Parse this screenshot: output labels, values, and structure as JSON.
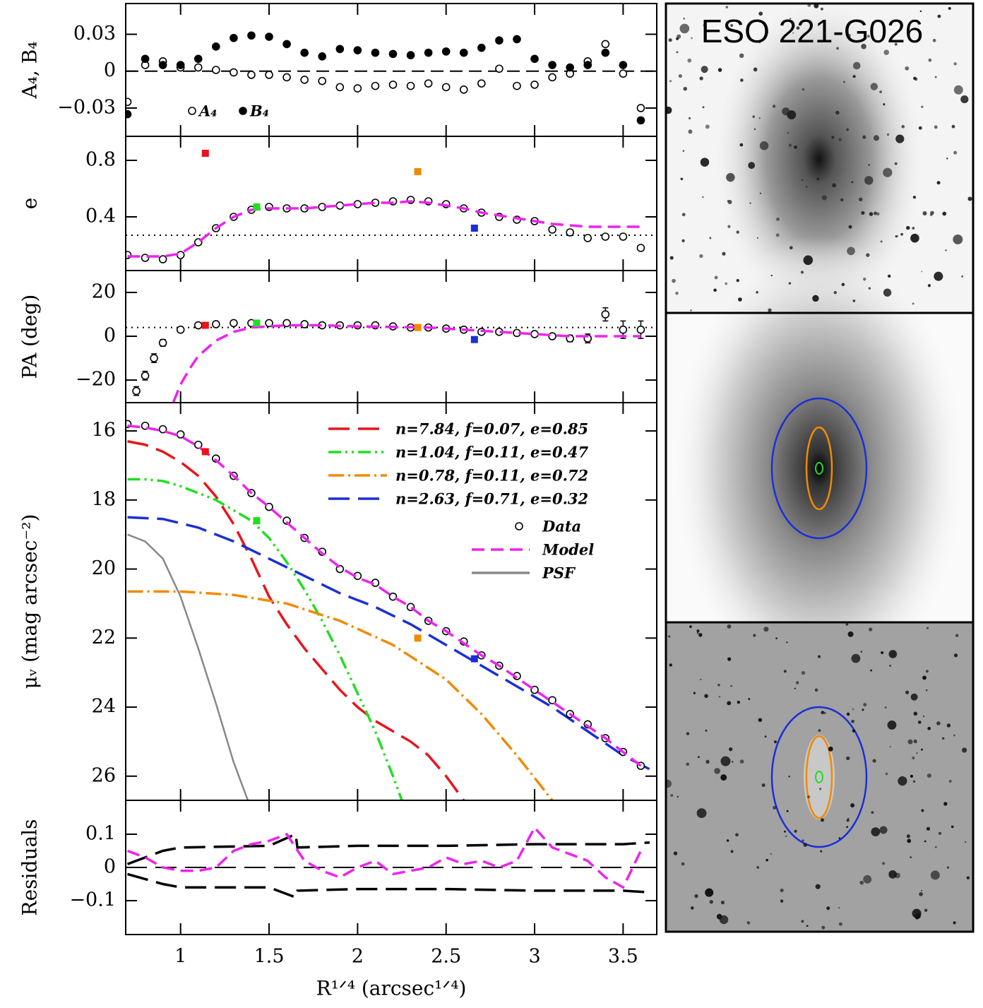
{
  "image_title": "ESO 221-G026",
  "chart_data": [
    {
      "type": "scatter",
      "ylabel": "A₄, B₄",
      "ylim": [
        -0.053,
        0.055
      ],
      "yticks": [
        0.03,
        0,
        {
          "value": -0.03,
          "label": "−0.03"
        }
      ],
      "ref_lines": [
        {
          "y": 0,
          "style": "dashed"
        }
      ],
      "legend": "lower-left",
      "series": [
        {
          "name": "A₄",
          "color": "#000000",
          "style": "points-open",
          "x": [
            0.7,
            0.8,
            0.9,
            1.0,
            1.1,
            1.2,
            1.3,
            1.4,
            1.5,
            1.6,
            1.7,
            1.8,
            1.9,
            2.0,
            2.1,
            2.2,
            2.3,
            2.4,
            2.5,
            2.6,
            2.7,
            2.8,
            2.9,
            3.0,
            3.1,
            3.2,
            3.3,
            3.4,
            3.5,
            3.6
          ],
          "values": [
            -0.025,
            0.005,
            0.008,
            0.003,
            0.003,
            0.001,
            -0.001,
            -0.003,
            -0.003,
            -0.005,
            -0.007,
            -0.008,
            -0.013,
            -0.014,
            -0.012,
            -0.011,
            -0.012,
            -0.01,
            -0.013,
            -0.015,
            -0.01,
            0.002,
            -0.012,
            -0.011,
            -0.005,
            -0.002,
            0.008,
            0.022,
            -0.002,
            -0.03
          ]
        },
        {
          "name": "B₄",
          "color": "#000000",
          "style": "points-filled",
          "x": [
            0.7,
            0.8,
            0.9,
            1.0,
            1.1,
            1.2,
            1.3,
            1.4,
            1.5,
            1.6,
            1.7,
            1.8,
            1.9,
            2.0,
            2.1,
            2.2,
            2.3,
            2.4,
            2.5,
            2.6,
            2.7,
            2.8,
            2.9,
            3.0,
            3.1,
            3.2,
            3.3,
            3.4,
            3.5,
            3.6
          ],
          "values": [
            -0.035,
            0.01,
            0.005,
            0.005,
            0.01,
            0.02,
            0.027,
            0.029,
            0.028,
            0.022,
            0.015,
            0.012,
            0.018,
            0.017,
            0.015,
            0.014,
            0.013,
            0.015,
            0.016,
            0.015,
            0.019,
            0.025,
            0.026,
            0.01,
            0.005,
            0.003,
            0.005,
            0.015,
            0.005,
            -0.04
          ]
        }
      ]
    },
    {
      "type": "scatter",
      "ylabel": "e",
      "ylim": [
        0.02,
        0.97
      ],
      "yticks": [
        0.8,
        0.4
      ],
      "ref_lines": [
        {
          "y": 0.27,
          "style": "dotted"
        }
      ],
      "series": [
        {
          "color": "#000000",
          "style": "points-open",
          "x": [
            0.7,
            0.8,
            0.9,
            1.0,
            1.1,
            1.2,
            1.3,
            1.4,
            1.5,
            1.6,
            1.7,
            1.8,
            1.9,
            2.0,
            2.1,
            2.2,
            2.3,
            2.4,
            2.5,
            2.6,
            2.7,
            2.8,
            2.9,
            3.0,
            3.1,
            3.2,
            3.3,
            3.4,
            3.5,
            3.6
          ],
          "values": [
            0.13,
            0.11,
            0.1,
            0.13,
            0.22,
            0.32,
            0.4,
            0.45,
            0.47,
            0.46,
            0.46,
            0.47,
            0.48,
            0.49,
            0.5,
            0.51,
            0.52,
            0.51,
            0.49,
            0.46,
            0.43,
            0.4,
            0.38,
            0.37,
            0.31,
            0.29,
            0.25,
            0.26,
            0.26,
            0.18
          ]
        },
        {
          "color": "#ee22ee",
          "style": "dashed",
          "x": [
            0.7,
            0.8,
            0.9,
            1.0,
            1.1,
            1.2,
            1.3,
            1.4,
            1.5,
            1.6,
            1.7,
            1.8,
            1.9,
            2.0,
            2.1,
            2.2,
            2.3,
            2.4,
            2.5,
            2.6,
            2.7,
            2.8,
            2.9,
            3.0,
            3.1,
            3.2,
            3.3,
            3.4,
            3.5,
            3.6
          ],
          "values": [
            0.12,
            0.12,
            0.12,
            0.14,
            0.22,
            0.32,
            0.4,
            0.45,
            0.46,
            0.46,
            0.46,
            0.47,
            0.48,
            0.49,
            0.5,
            0.5,
            0.51,
            0.5,
            0.48,
            0.46,
            0.43,
            0.41,
            0.39,
            0.37,
            0.35,
            0.34,
            0.33,
            0.33,
            0.33,
            0.33
          ]
        },
        {
          "style": "square",
          "x": [
            1.14,
            1.43,
            2.34,
            2.66
          ],
          "values": [
            0.85,
            0.47,
            0.72,
            0.32
          ],
          "colors": [
            "#e8141c",
            "#22dd22",
            "#f08a00",
            "#1a2fd8"
          ]
        }
      ]
    },
    {
      "type": "scatter",
      "ylabel": "PA (deg)",
      "ylim": [
        -30.3,
        30
      ],
      "yticks": [
        20,
        0,
        {
          "value": -20,
          "label": "−20"
        }
      ],
      "ref_lines": [
        {
          "y": 4,
          "style": "dotted"
        }
      ],
      "series": [
        {
          "color": "#000000",
          "style": "points-open",
          "x": [
            0.75,
            0.8,
            0.85,
            0.9,
            1.0,
            1.1,
            1.2,
            1.3,
            1.4,
            1.5,
            1.6,
            1.7,
            1.8,
            1.9,
            2.0,
            2.1,
            2.2,
            2.3,
            2.4,
            2.5,
            2.6,
            2.7,
            2.8,
            2.9,
            3.0,
            3.1,
            3.2,
            3.3,
            3.4,
            3.5,
            3.6
          ],
          "values": [
            -25,
            -18,
            -10,
            -3,
            3,
            5,
            5.5,
            6,
            6,
            6,
            6,
            5.5,
            5,
            5,
            5,
            5,
            4.5,
            4,
            4,
            3.5,
            3,
            2,
            2,
            1.5,
            1,
            0,
            -1,
            -1,
            10,
            3,
            3
          ],
          "errors": [
            2,
            2,
            2,
            1.5,
            1,
            0.5,
            0.5,
            0.5,
            0.5,
            0.5,
            0.5,
            0.5,
            0.5,
            0.5,
            0.5,
            0.5,
            0.5,
            0.5,
            0.5,
            0.5,
            0.5,
            0.5,
            0.5,
            0.5,
            0.5,
            1,
            1.5,
            2,
            3,
            4,
            4
          ]
        },
        {
          "color": "#ee22ee",
          "style": "dashed",
          "x": [
            0.96,
            1.0,
            1.05,
            1.1,
            1.2,
            1.3,
            1.4,
            1.6,
            1.8,
            2.0,
            2.4,
            2.8,
            3.2,
            3.6
          ],
          "values": [
            -30,
            -22,
            -15,
            -9,
            -2,
            2,
            4,
            5,
            5,
            4.5,
            4,
            2,
            0,
            0
          ]
        },
        {
          "style": "square",
          "x": [
            1.14,
            1.43,
            2.34,
            2.66
          ],
          "values": [
            5,
            6,
            4,
            -1.5
          ],
          "colors": [
            "#e8141c",
            "#22dd22",
            "#f08a00",
            "#1a2fd8"
          ]
        }
      ]
    },
    {
      "type": "line",
      "ylabel": "μᵥ (mag arcsec⁻²)",
      "ylim": [
        26.7,
        15.18
      ],
      "yticks": [
        16,
        18,
        20,
        22,
        24,
        26
      ],
      "legend": "upper-right",
      "series": [
        {
          "name": "n=7.84, f=0.07, e=0.85",
          "color": "#e8141c",
          "style": "long-dash",
          "x": [
            0.7,
            0.8,
            0.9,
            1.0,
            1.1,
            1.2,
            1.3,
            1.4,
            1.5,
            1.6,
            1.7,
            1.8,
            1.9,
            2.0,
            2.1,
            2.2,
            2.3,
            2.4,
            2.5,
            2.6
          ],
          "values": [
            16.3,
            16.4,
            16.6,
            16.9,
            17.3,
            17.9,
            18.7,
            19.7,
            20.8,
            21.6,
            22.3,
            22.9,
            23.5,
            24.0,
            24.4,
            24.7,
            25.0,
            25.4,
            26.0,
            26.7
          ]
        },
        {
          "name": "n=1.04, f=0.11, e=0.47",
          "color": "#22dd22",
          "style": "dash-dot-dot",
          "x": [
            0.7,
            0.8,
            0.9,
            1.0,
            1.1,
            1.2,
            1.3,
            1.4,
            1.5,
            1.6,
            1.7,
            1.8,
            1.9,
            2.0,
            2.1,
            2.2,
            2.25
          ],
          "values": [
            17.4,
            17.4,
            17.45,
            17.6,
            17.8,
            18.0,
            18.3,
            18.6,
            19.1,
            19.8,
            20.6,
            21.5,
            22.5,
            23.6,
            24.7,
            26.0,
            26.7
          ]
        },
        {
          "name": "n=0.78, f=0.11, e=0.72",
          "color": "#f08a00",
          "style": "dash-dot",
          "x": [
            0.7,
            1.0,
            1.3,
            1.6,
            1.9,
            2.2,
            2.5,
            2.7,
            2.9,
            3.1
          ],
          "values": [
            20.65,
            20.65,
            20.75,
            21.0,
            21.5,
            22.2,
            23.2,
            24.2,
            25.4,
            26.7
          ]
        },
        {
          "name": "n=2.63, f=0.71, e=0.32",
          "color": "#1a2fd8",
          "style": "long-dash",
          "x": [
            0.7,
            0.9,
            1.1,
            1.3,
            1.5,
            1.7,
            1.9,
            2.1,
            2.3,
            2.5,
            2.7,
            2.9,
            3.1,
            3.3,
            3.5,
            3.65
          ],
          "values": [
            18.5,
            18.55,
            18.8,
            19.2,
            19.7,
            20.2,
            20.7,
            21.1,
            21.6,
            22.2,
            22.8,
            23.4,
            24.0,
            24.7,
            25.4,
            25.8
          ]
        },
        {
          "name": "Data",
          "color": "#000000",
          "style": "points-open",
          "x": [
            0.7,
            0.8,
            0.9,
            1.0,
            1.1,
            1.2,
            1.3,
            1.4,
            1.5,
            1.6,
            1.7,
            1.8,
            1.9,
            2.0,
            2.1,
            2.2,
            2.3,
            2.4,
            2.5,
            2.6,
            2.7,
            2.8,
            2.9,
            3.0,
            3.1,
            3.2,
            3.3,
            3.4,
            3.5,
            3.6
          ],
          "values": [
            15.8,
            15.85,
            15.95,
            16.1,
            16.4,
            16.8,
            17.3,
            17.8,
            18.2,
            18.6,
            19.1,
            19.5,
            20.0,
            20.2,
            20.4,
            20.8,
            21.1,
            21.5,
            21.8,
            22.1,
            22.5,
            22.8,
            23.1,
            23.5,
            23.8,
            24.2,
            24.5,
            24.9,
            25.3,
            25.7
          ]
        },
        {
          "name": "Model",
          "color": "#ee22ee",
          "style": "dashed",
          "x": [
            0.7,
            0.8,
            0.9,
            1.0,
            1.1,
            1.2,
            1.3,
            1.4,
            1.5,
            1.6,
            1.7,
            1.8,
            1.9,
            2.0,
            2.1,
            2.2,
            2.3,
            2.4,
            2.5,
            2.6,
            2.7,
            2.8,
            2.9,
            3.0,
            3.1,
            3.2,
            3.3,
            3.4,
            3.5,
            3.6
          ],
          "values": [
            15.85,
            15.9,
            16.0,
            16.15,
            16.45,
            16.85,
            17.3,
            17.8,
            18.2,
            18.65,
            19.1,
            19.55,
            19.95,
            20.25,
            20.45,
            20.8,
            21.1,
            21.5,
            21.8,
            22.15,
            22.5,
            22.8,
            23.15,
            23.5,
            23.85,
            24.2,
            24.55,
            24.9,
            25.3,
            25.7
          ]
        },
        {
          "name": "PSF",
          "color": "#888888",
          "style": "solid",
          "x": [
            0.7,
            0.8,
            0.9,
            1.0,
            1.1,
            1.2,
            1.3,
            1.38
          ],
          "values": [
            19.0,
            19.2,
            19.7,
            20.8,
            22.3,
            23.9,
            25.6,
            26.7
          ]
        },
        {
          "style": "square",
          "x": [
            1.14,
            1.43,
            2.34,
            2.66
          ],
          "values": [
            16.6,
            18.6,
            22.0,
            22.6
          ],
          "colors": [
            "#e8141c",
            "#22dd22",
            "#f08a00",
            "#1a2fd8"
          ]
        }
      ]
    },
    {
      "type": "line",
      "ylabel": "Residuals",
      "xlabel": "R¹ᐟ⁴ (arcsec¹ᐟ⁴)",
      "xlim": [
        0.69,
        3.69
      ],
      "xticks": [
        1,
        1.5,
        2,
        2.5,
        3,
        3.5
      ],
      "ylim": [
        -0.202,
        0.202
      ],
      "yticks": [
        0.1,
        0,
        {
          "value": -0.1,
          "label": "−0.1"
        }
      ],
      "ref_lines": [
        {
          "y": 0,
          "style": "long-dash"
        }
      ],
      "series": [
        {
          "color": "#000000",
          "style": "long-dash",
          "x": [
            0.7,
            0.9,
            1.0,
            1.5,
            1.65,
            1.66,
            2.0,
            2.5,
            3.0,
            3.5,
            3.65
          ],
          "values": [
            0.01,
            0.05,
            0.06,
            0.065,
            0.1,
            0.06,
            0.065,
            0.065,
            0.07,
            0.07,
            0.075
          ]
        },
        {
          "color": "#000000",
          "style": "long-dash",
          "x": [
            0.7,
            0.9,
            1.0,
            1.5,
            1.65,
            1.66,
            2.0,
            2.5,
            3.0,
            3.5,
            3.65
          ],
          "values": [
            -0.02,
            -0.05,
            -0.06,
            -0.06,
            -0.09,
            -0.07,
            -0.065,
            -0.065,
            -0.07,
            -0.07,
            -0.075
          ]
        },
        {
          "color": "#ee22ee",
          "style": "dashed",
          "x": [
            0.7,
            0.8,
            0.9,
            1.0,
            1.1,
            1.2,
            1.3,
            1.4,
            1.5,
            1.6,
            1.7,
            1.8,
            1.9,
            2.0,
            2.1,
            2.2,
            2.3,
            2.4,
            2.5,
            2.6,
            2.7,
            2.8,
            2.9,
            3.0,
            3.1,
            3.2,
            3.3,
            3.4,
            3.5,
            3.6
          ],
          "values": [
            0.05,
            0.03,
            0.0,
            -0.01,
            -0.01,
            0.0,
            0.05,
            0.07,
            0.08,
            0.1,
            0.02,
            -0.01,
            -0.03,
            0.0,
            0.02,
            -0.02,
            -0.01,
            0.0,
            0.03,
            0.01,
            0.02,
            0.0,
            0.02,
            0.12,
            0.06,
            0.04,
            0.02,
            -0.03,
            -0.06,
            0.05
          ]
        }
      ]
    }
  ]
}
